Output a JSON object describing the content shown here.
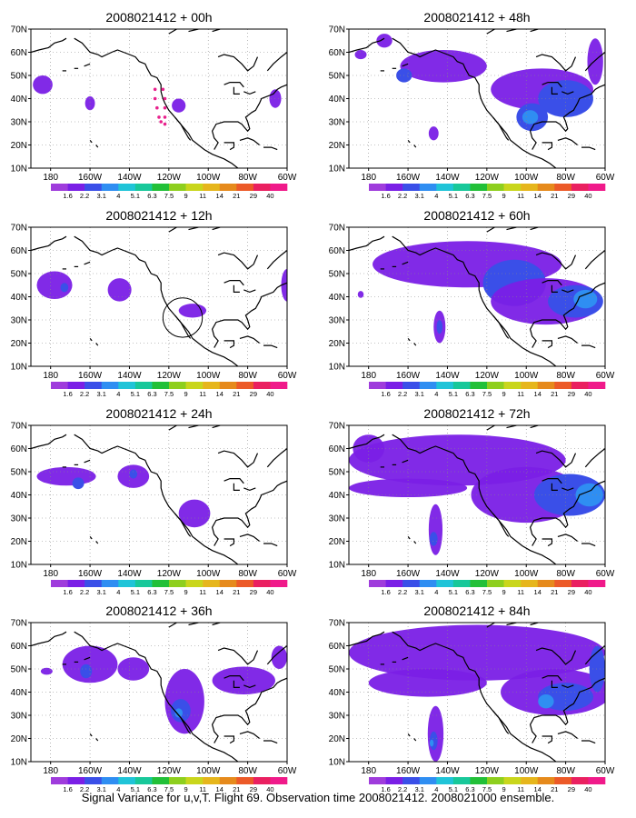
{
  "figure_caption": "Signal Variance for u,v,T. Flight 69. Observation time 2008021412. 2008021000 ensemble.",
  "colors": {
    "levels": [
      "#9f3cdc",
      "#7a1fe6",
      "#3a4fe8",
      "#2f8ef2",
      "#20c4d8",
      "#18c89a",
      "#22c038",
      "#8ecf1e",
      "#c9d61c",
      "#e6b61c",
      "#e68a1c",
      "#ec5a28",
      "#ea2060",
      "#f01a8a"
    ],
    "coast": "#000000",
    "track": "#e8208c"
  },
  "colorbar_labels": [
    "1.6",
    "2.2",
    "3.1",
    "4",
    "5.1",
    "6.3",
    "7.5",
    "9",
    "11",
    "14",
    "21",
    "29",
    "40"
  ],
  "chart_data": [
    {
      "type": "heatmap",
      "title": "2008021412 + 00h",
      "lon_range": [
        170,
        300
      ],
      "lat_range": [
        10,
        70
      ],
      "x_ticks": [
        "180",
        "160W",
        "140W",
        "120W",
        "100W",
        "80W",
        "60W"
      ],
      "y_ticks": [
        "10N",
        "20N",
        "30N",
        "40N",
        "50N",
        "60N",
        "70N"
      ],
      "blobs": [
        {
          "lon": 176,
          "lat": 46,
          "rx": 5,
          "ry": 4,
          "level": 1
        },
        {
          "lon": 200,
          "lat": 38,
          "rx": 2.5,
          "ry": 3,
          "level": 1
        },
        {
          "lon": 245,
          "lat": 37,
          "rx": 3.5,
          "ry": 3,
          "level": 1
        },
        {
          "lon": 294,
          "lat": 40,
          "rx": 3,
          "ry": 4,
          "level": 1
        }
      ],
      "track": [
        [
          233,
          44
        ],
        [
          233,
          40
        ],
        [
          234,
          36
        ],
        [
          235,
          32
        ],
        [
          236,
          30
        ],
        [
          238,
          29
        ],
        [
          238,
          32
        ],
        [
          238,
          36
        ],
        [
          238,
          40
        ],
        [
          237,
          44
        ]
      ]
    },
    {
      "type": "heatmap",
      "title": "2008021412 + 12h",
      "lon_range": [
        170,
        300
      ],
      "lat_range": [
        10,
        70
      ],
      "x_ticks": [
        "180",
        "160W",
        "140W",
        "120W",
        "100W",
        "80W",
        "60W"
      ],
      "y_ticks": [
        "10N",
        "20N",
        "30N",
        "40N",
        "50N",
        "60N",
        "70N"
      ],
      "blobs": [
        {
          "lon": 182,
          "lat": 45,
          "rx": 9,
          "ry": 6,
          "level": 1
        },
        {
          "lon": 187,
          "lat": 44,
          "rx": 2,
          "ry": 2,
          "level": 2
        },
        {
          "lon": 215,
          "lat": 43,
          "rx": 6,
          "ry": 5,
          "level": 1
        },
        {
          "lon": 252,
          "lat": 34,
          "rx": 7,
          "ry": 3,
          "level": 1
        },
        {
          "lon": 300,
          "lat": 45,
          "rx": 3,
          "ry": 7,
          "level": 1
        }
      ],
      "circle": {
        "lon": 247,
        "lat": 31,
        "r": 10
      }
    },
    {
      "type": "heatmap",
      "title": "2008021412 + 24h",
      "lon_range": [
        170,
        300
      ],
      "lat_range": [
        10,
        70
      ],
      "x_ticks": [
        "180",
        "160W",
        "140W",
        "120W",
        "100W",
        "80W",
        "60W"
      ],
      "y_ticks": [
        "10N",
        "20N",
        "30N",
        "40N",
        "50N",
        "60N",
        "70N"
      ],
      "blobs": [
        {
          "lon": 188,
          "lat": 48,
          "rx": 15,
          "ry": 4,
          "level": 1
        },
        {
          "lon": 194,
          "lat": 45,
          "rx": 3,
          "ry": 2.5,
          "level": 2
        },
        {
          "lon": 222,
          "lat": 48,
          "rx": 8,
          "ry": 5,
          "level": 1
        },
        {
          "lon": 222,
          "lat": 49,
          "rx": 2,
          "ry": 2,
          "level": 2
        },
        {
          "lon": 253,
          "lat": 32,
          "rx": 8,
          "ry": 6,
          "level": 1
        }
      ]
    },
    {
      "type": "heatmap",
      "title": "2008021412 + 36h",
      "lon_range": [
        170,
        300
      ],
      "lat_range": [
        10,
        70
      ],
      "x_ticks": [
        "180",
        "160W",
        "140W",
        "120W",
        "100W",
        "80W",
        "60W"
      ],
      "y_ticks": [
        "10N",
        "20N",
        "30N",
        "40N",
        "50N",
        "60N",
        "70N"
      ],
      "blobs": [
        {
          "lon": 200,
          "lat": 52,
          "rx": 14,
          "ry": 8,
          "level": 1
        },
        {
          "lon": 198,
          "lat": 49,
          "rx": 3,
          "ry": 3,
          "level": 2
        },
        {
          "lon": 178,
          "lat": 49,
          "rx": 3,
          "ry": 1.5,
          "level": 1
        },
        {
          "lon": 222,
          "lat": 50,
          "rx": 8,
          "ry": 5,
          "level": 1
        },
        {
          "lon": 248,
          "lat": 36,
          "rx": 10,
          "ry": 14,
          "level": 1
        },
        {
          "lon": 246,
          "lat": 32,
          "rx": 5,
          "ry": 5,
          "level": 2
        },
        {
          "lon": 245,
          "lat": 31,
          "rx": 2,
          "ry": 2,
          "level": 3
        },
        {
          "lon": 278,
          "lat": 45,
          "rx": 16,
          "ry": 6,
          "level": 1
        },
        {
          "lon": 296,
          "lat": 55,
          "rx": 4,
          "ry": 5,
          "level": 1
        }
      ]
    },
    {
      "type": "heatmap",
      "title": "2008021412 + 48h",
      "lon_range": [
        170,
        300
      ],
      "lat_range": [
        10,
        70
      ],
      "x_ticks": [
        "180",
        "160W",
        "140W",
        "120W",
        "100W",
        "80W",
        "60W"
      ],
      "y_ticks": [
        "10N",
        "20N",
        "30N",
        "40N",
        "50N",
        "60N",
        "70N"
      ],
      "blobs": [
        {
          "lon": 218,
          "lat": 54,
          "rx": 22,
          "ry": 7,
          "level": 1
        },
        {
          "lon": 198,
          "lat": 50,
          "rx": 4,
          "ry": 3,
          "level": 2
        },
        {
          "lon": 268,
          "lat": 44,
          "rx": 26,
          "ry": 9,
          "level": 1
        },
        {
          "lon": 280,
          "lat": 40,
          "rx": 14,
          "ry": 8,
          "level": 2
        },
        {
          "lon": 263,
          "lat": 32,
          "rx": 8,
          "ry": 6,
          "level": 2
        },
        {
          "lon": 262,
          "lat": 32,
          "rx": 4,
          "ry": 3,
          "level": 3
        },
        {
          "lon": 295,
          "lat": 56,
          "rx": 4,
          "ry": 10,
          "level": 1
        },
        {
          "lon": 213,
          "lat": 25,
          "rx": 2.5,
          "ry": 3,
          "level": 1
        },
        {
          "lon": 176,
          "lat": 59,
          "rx": 3,
          "ry": 2,
          "level": 1
        },
        {
          "lon": 188,
          "lat": 65,
          "rx": 4,
          "ry": 3,
          "level": 1
        }
      ]
    },
    {
      "type": "heatmap",
      "title": "2008021412 + 60h",
      "lon_range": [
        170,
        300
      ],
      "lat_range": [
        10,
        70
      ],
      "x_ticks": [
        "180",
        "160W",
        "140W",
        "120W",
        "100W",
        "80W",
        "60W"
      ],
      "y_ticks": [
        "10N",
        "20N",
        "30N",
        "40N",
        "50N",
        "60N",
        "70N"
      ],
      "blobs": [
        {
          "lon": 230,
          "lat": 54,
          "rx": 48,
          "ry": 10,
          "level": 1
        },
        {
          "lon": 254,
          "lat": 46,
          "rx": 16,
          "ry": 10,
          "level": 2
        },
        {
          "lon": 270,
          "lat": 38,
          "rx": 28,
          "ry": 10,
          "level": 1
        },
        {
          "lon": 285,
          "lat": 38,
          "rx": 14,
          "ry": 7,
          "level": 2
        },
        {
          "lon": 290,
          "lat": 39,
          "rx": 6,
          "ry": 4,
          "level": 3
        },
        {
          "lon": 216,
          "lat": 27,
          "rx": 3,
          "ry": 7,
          "level": 1
        },
        {
          "lon": 216,
          "lat": 27,
          "rx": 1.5,
          "ry": 3,
          "level": 2
        },
        {
          "lon": 176,
          "lat": 41,
          "rx": 1.5,
          "ry": 1.5,
          "level": 1
        }
      ]
    },
    {
      "type": "heatmap",
      "title": "2008021412 + 72h",
      "lon_range": [
        170,
        300
      ],
      "lat_range": [
        10,
        70
      ],
      "x_ticks": [
        "180",
        "160W",
        "140W",
        "120W",
        "100W",
        "80W",
        "60W"
      ],
      "y_ticks": [
        "10N",
        "20N",
        "30N",
        "40N",
        "50N",
        "60N",
        "70N"
      ],
      "blobs": [
        {
          "lon": 225,
          "lat": 55,
          "rx": 55,
          "ry": 11,
          "level": 1
        },
        {
          "lon": 200,
          "lat": 43,
          "rx": 30,
          "ry": 4,
          "level": 1
        },
        {
          "lon": 260,
          "lat": 40,
          "rx": 28,
          "ry": 12,
          "level": 1
        },
        {
          "lon": 282,
          "lat": 40,
          "rx": 18,
          "ry": 9,
          "level": 2
        },
        {
          "lon": 292,
          "lat": 40,
          "rx": 7,
          "ry": 5,
          "level": 3
        },
        {
          "lon": 214,
          "lat": 25,
          "rx": 3.5,
          "ry": 11,
          "level": 1
        },
        {
          "lon": 213,
          "lat": 21,
          "rx": 2,
          "ry": 3,
          "level": 2
        },
        {
          "lon": 180,
          "lat": 60,
          "rx": 8,
          "ry": 6,
          "level": 1
        }
      ]
    },
    {
      "type": "heatmap",
      "title": "2008021412 + 84h",
      "lon_range": [
        170,
        300
      ],
      "lat_range": [
        10,
        70
      ],
      "x_ticks": [
        "180",
        "160W",
        "140W",
        "120W",
        "100W",
        "80W",
        "60W"
      ],
      "y_ticks": [
        "10N",
        "20N",
        "30N",
        "40N",
        "50N",
        "60N",
        "70N"
      ],
      "blobs": [
        {
          "lon": 235,
          "lat": 57,
          "rx": 65,
          "ry": 12,
          "level": 1
        },
        {
          "lon": 210,
          "lat": 44,
          "rx": 30,
          "ry": 6,
          "level": 1
        },
        {
          "lon": 275,
          "lat": 40,
          "rx": 28,
          "ry": 10,
          "level": 1
        },
        {
          "lon": 280,
          "lat": 38,
          "rx": 14,
          "ry": 6,
          "level": 2
        },
        {
          "lon": 270,
          "lat": 36,
          "rx": 4,
          "ry": 3,
          "level": 3
        },
        {
          "lon": 214,
          "lat": 22,
          "rx": 4,
          "ry": 12,
          "level": 1
        },
        {
          "lon": 213,
          "lat": 19,
          "rx": 2,
          "ry": 4,
          "level": 2
        },
        {
          "lon": 212,
          "lat": 18,
          "rx": 1,
          "ry": 1.5,
          "level": 3
        },
        {
          "lon": 296,
          "lat": 50,
          "rx": 4,
          "ry": 10,
          "level": 2
        }
      ]
    }
  ]
}
